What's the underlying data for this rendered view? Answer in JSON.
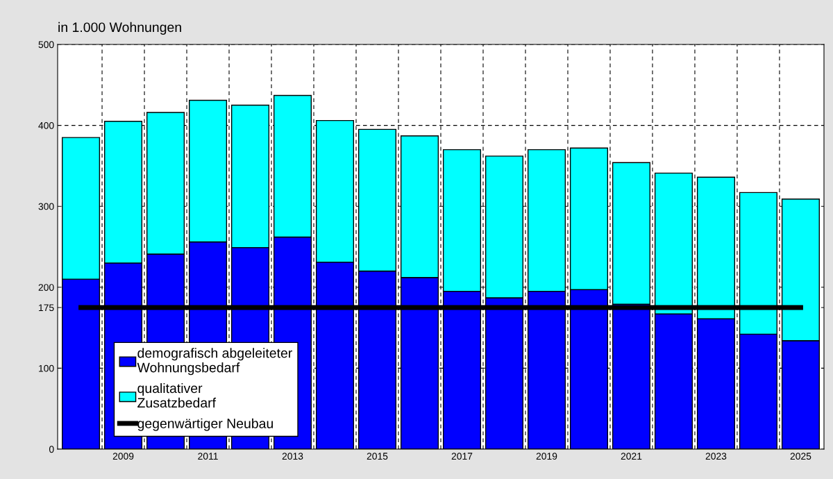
{
  "chart_data": {
    "type": "bar",
    "stacked": true,
    "ylabel": "in 1.000 Wohnungen",
    "categories": [
      null,
      "2009",
      null,
      "2011",
      null,
      "2013",
      null,
      "2015",
      null,
      "2017",
      null,
      "2019",
      null,
      "2021",
      null,
      "2023",
      null,
      "2025"
    ],
    "series": [
      {
        "name": "demografisch abgeleiteter Wohnungsbedarf",
        "color": "#0000ff",
        "values": [
          210,
          230,
          241,
          256,
          249,
          262,
          231,
          220,
          212,
          195,
          187,
          195,
          197,
          179,
          167,
          161,
          142,
          134
        ]
      },
      {
        "name": "qualitativer Zusatzbedarf",
        "color": "#00ffff",
        "values": [
          175,
          175,
          175,
          175,
          176,
          175,
          175,
          175,
          175,
          175,
          175,
          175,
          175,
          175,
          174,
          175,
          175,
          175
        ]
      },
      {
        "name": "gegenwärtiger Neubau",
        "type": "line",
        "color": "#000000",
        "values": [
          175,
          175,
          175,
          175,
          175,
          175,
          175,
          175,
          175,
          175,
          175,
          175,
          175,
          175,
          175,
          175,
          175,
          175
        ]
      }
    ],
    "ylim": [
      0,
      500
    ],
    "yticks": [
      0,
      100,
      175,
      200,
      300,
      400,
      500
    ],
    "grid": true,
    "legend": "bottom left",
    "line_style": "solid",
    "marker": "none"
  }
}
